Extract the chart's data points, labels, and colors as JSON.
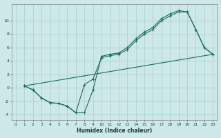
{
  "xlabel": "Humidex (Indice chaleur)",
  "bg_color": "#cce8e8",
  "grid_color": "#aacccc",
  "line_color": "#1a6b5a",
  "xlim": [
    -0.5,
    23.5
  ],
  "ylim": [
    -4.8,
    12.5
  ],
  "yticks": [
    -4,
    -2,
    0,
    2,
    4,
    6,
    8,
    10
  ],
  "xticks": [
    0,
    1,
    2,
    3,
    4,
    5,
    6,
    7,
    8,
    9,
    10,
    11,
    12,
    13,
    14,
    15,
    16,
    17,
    18,
    19,
    20,
    21,
    22,
    23
  ],
  "line1_x": [
    1,
    2,
    3,
    4,
    5,
    6,
    7,
    8,
    9,
    10,
    11,
    12,
    13,
    14,
    15,
    16,
    17,
    18,
    19,
    20,
    21,
    22,
    23
  ],
  "line1_y": [
    0.3,
    -0.3,
    -1.5,
    -2.2,
    -2.3,
    -2.7,
    -3.7,
    -3.7,
    -0.3,
    4.7,
    5.0,
    5.2,
    6.0,
    7.3,
    8.3,
    9.0,
    10.3,
    11.0,
    11.5,
    11.3,
    8.7,
    6.0,
    5.0
  ],
  "line2_x": [
    1,
    2,
    3,
    4,
    5,
    6,
    7,
    8,
    9,
    10,
    11,
    12,
    13,
    14,
    15,
    16,
    17,
    18,
    19,
    20,
    21,
    22,
    23
  ],
  "line2_y": [
    0.3,
    -0.3,
    -1.5,
    -2.2,
    -2.3,
    -2.7,
    -3.7,
    0.5,
    1.3,
    4.5,
    4.8,
    5.0,
    5.7,
    7.0,
    8.0,
    8.7,
    10.0,
    10.7,
    11.3,
    11.3,
    8.7,
    6.0,
    5.0
  ],
  "line3_x": [
    1,
    23
  ],
  "line3_y": [
    0.3,
    5.0
  ]
}
